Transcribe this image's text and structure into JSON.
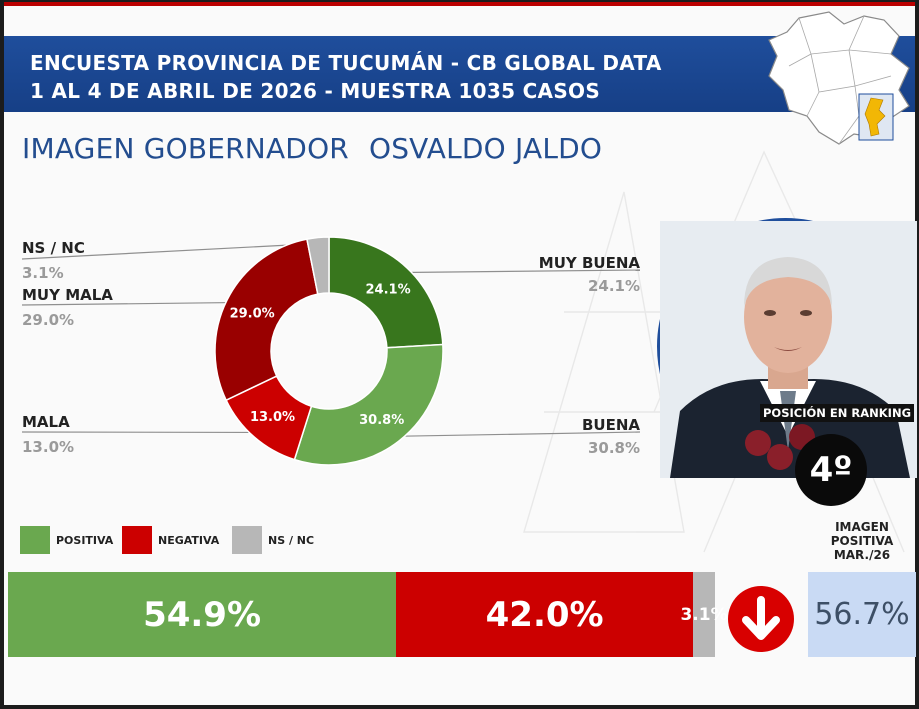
{
  "header": {
    "line1": "ENCUESTA PROVINCIA DE TUCUMÁN - CB GLOBAL DATA",
    "line2": "1 AL 4 DE ABRIL DE 2026 - MUESTRA 1035 CASOS"
  },
  "title": {
    "part1": "IMAGEN GOBERNADOR",
    "part2": "OSVALDO JALDO"
  },
  "colors": {
    "header_blue": "#1f4e9c",
    "positiva": "#6aa84f",
    "negativa": "#cc0000",
    "nsnc": "#b7b7b7",
    "muy_buena": "#38761d",
    "muy_mala": "#990000",
    "previous_box": "#c9daf4"
  },
  "ranking": {
    "label": "POSICIÓN EN RANKING",
    "value": "4º"
  },
  "chart_data": [
    {
      "type": "pie",
      "donut": true,
      "slices": [
        {
          "label": "MUY BUENA",
          "value": 24.1,
          "display": "24.1%",
          "color": "#38761d"
        },
        {
          "label": "BUENA",
          "value": 30.8,
          "display": "30.8%",
          "color": "#6aa84f"
        },
        {
          "label": "MALA",
          "value": 13.0,
          "display": "13.0%",
          "color": "#cc0000"
        },
        {
          "label": "MUY MALA",
          "value": 29.0,
          "display": "29.0%",
          "color": "#990000"
        },
        {
          "label": "NS / NC",
          "value": 3.1,
          "display": "3.1%",
          "color": "#b7b7b7"
        }
      ]
    },
    {
      "type": "bar",
      "orientation": "horizontal",
      "stacked": true,
      "legend": [
        {
          "label": "POSITIVA",
          "color": "#6aa84f"
        },
        {
          "label": "NEGATIVA",
          "color": "#cc0000"
        },
        {
          "label": "NS / NC",
          "color": "#b7b7b7"
        }
      ],
      "series": [
        {
          "name": "POSITIVA",
          "value": 54.9,
          "display": "54.9%",
          "color": "#6aa84f"
        },
        {
          "name": "NEGATIVA",
          "value": 42.0,
          "display": "42.0%",
          "color": "#cc0000"
        },
        {
          "name": "NS / NC",
          "value": 3.1,
          "display": "3.1%",
          "color": "#b7b7b7"
        }
      ],
      "trend": "down",
      "previous": {
        "label_lines": [
          "IMAGEN",
          "POSITIVA",
          "MAR./26"
        ],
        "value": 56.7,
        "display": "56.7%"
      }
    }
  ]
}
